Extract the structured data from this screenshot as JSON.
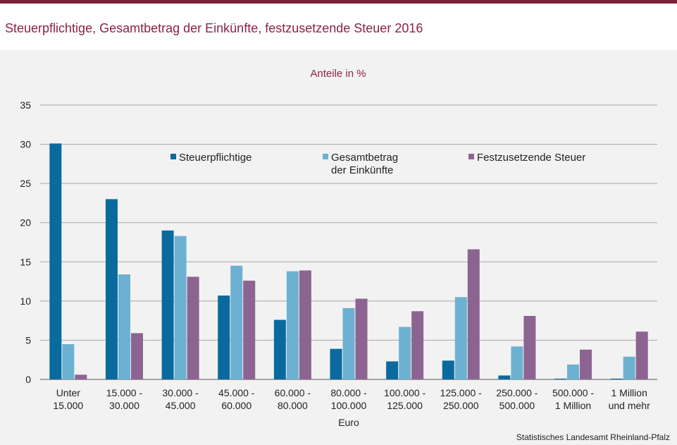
{
  "title": "Steuerpflichtige, Gesamtbetrag der Einkünfte, festzusetzende Steuer 2016",
  "source": "Statistisches Landesamt Rheinland-Pfalz",
  "colors": {
    "accent": "#8a2346",
    "series": [
      "#0a6a9e",
      "#6db1d2",
      "#8c6491"
    ]
  },
  "chart_data": {
    "type": "bar",
    "title": "Anteile in %",
    "xlabel": "Euro",
    "ylabel": "",
    "ylim": [
      0,
      35
    ],
    "yticks": [
      0,
      5,
      10,
      15,
      20,
      25,
      30,
      35
    ],
    "grid": true,
    "legend_position": "top-center",
    "categories": [
      [
        "Unter",
        "15.000"
      ],
      [
        "15.000 -",
        "30.000"
      ],
      [
        "30.000 -",
        "45.000"
      ],
      [
        "45.000 -",
        "60.000"
      ],
      [
        "60.000 -",
        "80.000"
      ],
      [
        "80.000 -",
        "100.000"
      ],
      [
        "100.000 -",
        "125.000"
      ],
      [
        "125.000 -",
        "250.000"
      ],
      [
        "250.000 -",
        "500.000"
      ],
      [
        "500.000 -",
        "1 Million"
      ],
      [
        "1 Million",
        "und mehr"
      ]
    ],
    "series": [
      {
        "name": [
          "Steuerpflichtige"
        ],
        "values": [
          30.1,
          23.0,
          19.0,
          10.7,
          7.6,
          3.9,
          2.3,
          2.4,
          0.5,
          0.1,
          0.1
        ]
      },
      {
        "name": [
          "Gesamtbetrag",
          "der Einkünfte"
        ],
        "values": [
          4.5,
          13.4,
          18.3,
          14.5,
          13.8,
          9.1,
          6.7,
          10.5,
          4.2,
          1.9,
          2.9
        ]
      },
      {
        "name": [
          "Festzusetzende Steuer"
        ],
        "values": [
          0.6,
          5.9,
          13.1,
          12.6,
          13.9,
          10.3,
          8.7,
          16.6,
          8.1,
          3.8,
          6.1
        ]
      }
    ]
  }
}
